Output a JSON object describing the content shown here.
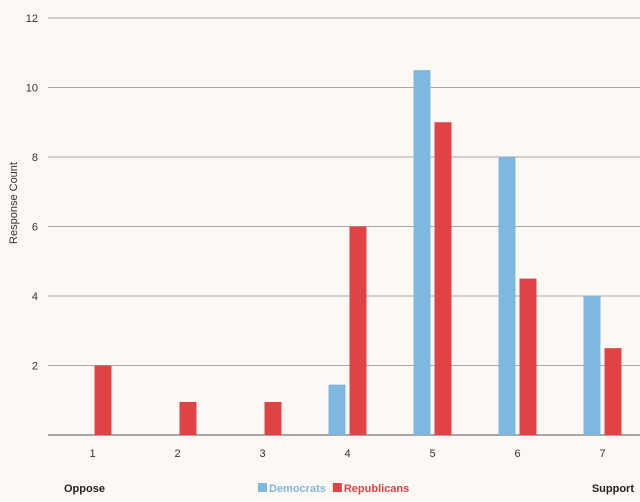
{
  "chart_data": {
    "type": "bar",
    "categories": [
      "1",
      "2",
      "3",
      "4",
      "5",
      "6",
      "7"
    ],
    "series": [
      {
        "name": "Democrats",
        "values": [
          0,
          0,
          0,
          1.45,
          10.5,
          8,
          4
        ],
        "color": "#7fb8df"
      },
      {
        "name": "Republicans",
        "values": [
          2,
          0.95,
          0.95,
          6,
          9,
          4.5,
          2.5
        ],
        "color": "#e04343"
      }
    ],
    "ylabel": "Response Count",
    "xlabel": "",
    "ylim": [
      0,
      12
    ],
    "yticks": [
      "2",
      "4",
      "6",
      "8",
      "10",
      "12"
    ],
    "grid": true,
    "legend_position": "bottom",
    "scale_ends": {
      "left": "Oppose",
      "right": "Support"
    }
  }
}
